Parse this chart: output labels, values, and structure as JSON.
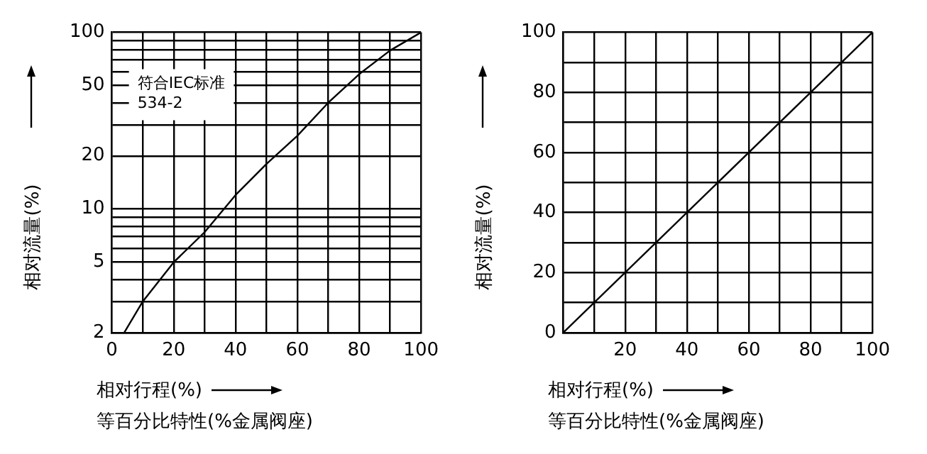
{
  "chart_data": [
    {
      "type": "line",
      "xlabel": "相对行程(%)",
      "ylabel": "相对流量(%)",
      "subtitle": "等百分比特性(%金属阀座)",
      "annotations": [
        "符合IEC标准\n534-2"
      ],
      "log": "y",
      "grid": true,
      "marker": "none",
      "line_style": "solid",
      "series": [
        {
          "color": "#000000",
          "x": [
            4,
            10,
            20,
            30,
            40,
            50,
            60,
            70,
            80,
            90,
            100
          ],
          "values": [
            2,
            3,
            5,
            7.4,
            12,
            18,
            26,
            40,
            58,
            79,
            100
          ]
        }
      ],
      "xlim": [
        0,
        100
      ],
      "ylim": [
        2,
        100
      ],
      "xticks": [
        0,
        {
          "value": 10,
          "label": null
        },
        20,
        {
          "value": 30,
          "label": null
        },
        40,
        {
          "value": 50,
          "label": null
        },
        60,
        {
          "value": 70,
          "label": null
        },
        80,
        {
          "value": 90,
          "label": null
        },
        100
      ],
      "yticks": [
        2,
        {
          "value": 3,
          "label": null
        },
        {
          "value": 4,
          "label": null
        },
        5,
        {
          "value": 6,
          "label": null
        },
        {
          "value": 7,
          "label": null
        },
        {
          "value": 8,
          "label": null
        },
        {
          "value": 9,
          "label": null
        },
        10,
        20,
        {
          "value": 30,
          "label": null
        },
        {
          "value": 40,
          "label": null
        },
        50,
        {
          "value": 60,
          "label": null
        },
        {
          "value": 70,
          "label": null
        },
        {
          "value": 80,
          "label": null
        },
        {
          "value": 90,
          "label": null
        },
        100
      ]
    },
    {
      "type": "line",
      "xlabel": "相对行程(%)",
      "ylabel": "相对流量(%)",
      "subtitle": "等百分比特性(%金属阀座)",
      "grid": true,
      "marker": "none",
      "line_style": "solid",
      "series": [
        {
          "color": "#000000",
          "x": [
            0,
            100
          ],
          "values": [
            0,
            100
          ]
        }
      ],
      "xlim": [
        0,
        100
      ],
      "ylim": [
        0,
        100
      ],
      "xticks": [
        {
          "value": 0,
          "label": null
        },
        {
          "value": 10,
          "label": null
        },
        20,
        {
          "value": 30,
          "label": null
        },
        40,
        {
          "value": 50,
          "label": null
        },
        60,
        {
          "value": 70,
          "label": null
        },
        80,
        {
          "value": 90,
          "label": null
        },
        100
      ],
      "yticks": [
        0,
        {
          "value": 10,
          "label": null
        },
        20,
        {
          "value": 30,
          "label": null
        },
        40,
        {
          "value": 50,
          "label": null
        },
        60,
        {
          "value": 70,
          "label": null
        },
        80,
        {
          "value": 90,
          "label": null
        },
        100
      ]
    }
  ]
}
